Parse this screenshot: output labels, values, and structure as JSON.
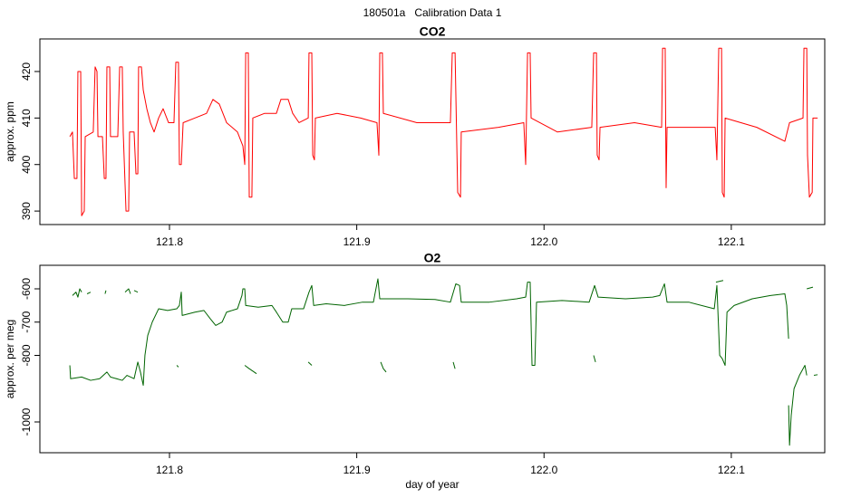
{
  "title": "180501a   Calibration Data 1",
  "chart_data": [
    {
      "type": "line",
      "title": "CO2",
      "y_label": "approx. ppm",
      "color": "#ff0000",
      "xlim": [
        121.7308,
        122.1499
      ],
      "ylim": [
        387.1,
        427.0
      ],
      "xticks": [
        121.8,
        121.9,
        {
          "value": 122,
          "label": "122.0"
        },
        122.1
      ],
      "yticks": [
        390,
        400,
        410,
        420
      ],
      "x": [
        121.7468,
        121.7482,
        121.7492,
        121.7506,
        121.7511,
        121.7526,
        121.7531,
        121.7545,
        121.755,
        121.7593,
        121.7603,
        121.7613,
        121.7618,
        121.7642,
        121.7652,
        121.7661,
        121.7666,
        121.7681,
        121.7685,
        121.7724,
        121.7734,
        121.7748,
        121.7753,
        121.7768,
        121.7782,
        121.7787,
        121.7811,
        121.7821,
        121.7831,
        121.7835,
        121.785,
        121.786,
        121.7879,
        121.7898,
        121.7918,
        121.7942,
        121.7966,
        121.7995,
        121.8024,
        121.8034,
        121.8048,
        121.8053,
        121.8063,
        121.8073,
        121.8136,
        121.8198,
        121.8232,
        121.8266,
        121.8305,
        121.8363,
        121.8392,
        121.8402,
        121.8407,
        121.8421,
        121.8426,
        121.844,
        121.8445,
        121.8508,
        121.8571,
        121.8595,
        121.8634,
        121.8658,
        121.8692,
        121.8741,
        121.8745,
        121.876,
        121.8765,
        121.8774,
        121.8779,
        121.8895,
        121.9021,
        121.9108,
        121.9118,
        121.9123,
        121.9137,
        121.9142,
        121.9321,
        121.95,
        121.951,
        121.9525,
        121.9539,
        121.9554,
        121.9558,
        121.9757,
        121.9892,
        121.9902,
        121.9912,
        121.9926,
        121.9931,
        122.0072,
        122.0255,
        122.0265,
        122.028,
        122.0284,
        122.0294,
        122.0299,
        122.0483,
        122.0628,
        122.0633,
        122.0647,
        122.0652,
        122.0657,
        122.0773,
        122.0914,
        122.0923,
        122.0933,
        122.0948,
        122.0952,
        122.0962,
        122.0967,
        122.1136,
        122.1286,
        122.1311,
        122.1383,
        122.1388,
        122.1403,
        122.1407,
        122.1417,
        122.1432,
        122.1436,
        122.1461
      ],
      "values": [
        406,
        407,
        397,
        397,
        420,
        420,
        389,
        390,
        406,
        407,
        421,
        420,
        406,
        406,
        397,
        397,
        421,
        421,
        406,
        406,
        421,
        421,
        407,
        390,
        390,
        407,
        407,
        398,
        398,
        421,
        421,
        416,
        412,
        409,
        407,
        410,
        412,
        409,
        409,
        422,
        422,
        400,
        400,
        409,
        410,
        411,
        414,
        413,
        409,
        407,
        404,
        400,
        424,
        424,
        393,
        393,
        410,
        411,
        411,
        414,
        414,
        411,
        409,
        410,
        424,
        424,
        402,
        401,
        410,
        411,
        410,
        409,
        402,
        424,
        424,
        411,
        409,
        409,
        424,
        424,
        394,
        393,
        407,
        408,
        409,
        400,
        424,
        424,
        410,
        407,
        408,
        424,
        424,
        402,
        401,
        408,
        409,
        408,
        425,
        425,
        395,
        408,
        408,
        408,
        401,
        425,
        425,
        394,
        393,
        410,
        408,
        405,
        409,
        410,
        425,
        425,
        402,
        393,
        394,
        410,
        410
      ]
    },
    {
      "type": "line",
      "title": "O2",
      "y_label": "approx. per meg",
      "x_label": "day of year",
      "color": "#006400",
      "xlim": [
        121.7308,
        122.1499
      ],
      "ylim": [
        -1092.5,
        -529.3
      ],
      "xticks": [
        121.8,
        121.9,
        {
          "value": 122,
          "label": "122.0"
        },
        122.1
      ],
      "yticks": [
        -600,
        -700,
        -800,
        -1000
      ],
      "x": [
        121.7468,
        121.7472,
        121.7531,
        121.7579,
        121.7627,
        121.7666,
        121.7685,
        121.7748,
        121.7773,
        121.7811,
        121.7831,
        121.7845,
        121.786,
        121.7869,
        121.7884,
        121.7908,
        121.7942,
        121.799,
        121.8039,
        121.8053,
        121.8063,
        121.8068,
        121.8136,
        121.8184,
        121.8218,
        121.8247,
        121.8281,
        121.8305,
        121.8363,
        121.8387,
        121.8392,
        121.8402,
        121.8407,
        121.8474,
        121.8547,
        121.8571,
        121.8605,
        121.8634,
        121.8653,
        121.8716,
        121.8745,
        121.876,
        121.877,
        121.8837,
        121.8934,
        121.9031,
        121.9089,
        121.9099,
        121.9113,
        121.9123,
        121.9273,
        121.9418,
        121.95,
        121.9529,
        121.9549,
        121.9558,
        121.9709,
        121.9854,
        121.9902,
        121.9912,
        121.9926,
        121.9936,
        121.9951,
        121.996,
        122.0096,
        122.0241,
        122.027,
        122.0289,
        122.0435,
        122.058,
        122.0618,
        122.0643,
        122.0657,
        122.0773,
        122.0909,
        122.0923,
        122.0938,
        122.0952,
        122.0967,
        122.0977,
        122.1015,
        122.1112,
        122.1209,
        122.1286,
        122.1296,
        122.1306,
        null,
        122.1306,
        122.1311,
        122.132,
        122.1335,
        122.1364,
        122.1393,
        122.1403,
        null,
        122.1441,
        122.1461,
        null,
        121.7482,
        121.7501,
        121.7511,
        121.7521,
        121.7531,
        null,
        121.756,
        121.7579,
        null,
        121.7656,
        121.7661,
        null,
        121.7763,
        121.7782,
        121.7792,
        null,
        121.7811,
        121.7831,
        null,
        121.8039,
        121.8048,
        null,
        121.8402,
        121.8426,
        121.8465,
        null,
        121.8741,
        121.876,
        null,
        121.9128,
        121.9142,
        121.9157,
        null,
        121.9515,
        121.9525,
        null,
        122.0265,
        122.0275,
        null,
        122.0918,
        122.0957,
        null,
        122.1403,
        122.1436
      ],
      "values": [
        -830,
        -870,
        -865,
        -875,
        -870,
        -850,
        -865,
        -875,
        -860,
        -870,
        -820,
        -850,
        -890,
        -800,
        -740,
        -700,
        -660,
        -665,
        -660,
        -650,
        -610,
        -680,
        -670,
        -665,
        -690,
        -710,
        -700,
        -670,
        -660,
        -620,
        -600,
        -600,
        -650,
        -655,
        -650,
        -670,
        -700,
        -700,
        -660,
        -660,
        -610,
        -590,
        -650,
        -645,
        -650,
        -640,
        -640,
        -610,
        -570,
        -630,
        -630,
        -632,
        -640,
        -585,
        -590,
        -640,
        -640,
        -630,
        -625,
        -580,
        -580,
        -830,
        -830,
        -640,
        -635,
        -640,
        -590,
        -625,
        -630,
        -625,
        -620,
        -585,
        -640,
        -640,
        -660,
        -590,
        -800,
        -810,
        -830,
        -670,
        -650,
        -630,
        -620,
        -615,
        -650,
        -750,
        null,
        -950,
        -1070,
        -980,
        -900,
        -860,
        -830,
        -860,
        null,
        -860,
        -858,
        null,
        -620,
        -610,
        -625,
        -600,
        -610,
        null,
        -615,
        -610,
        null,
        -615,
        -605,
        null,
        -610,
        -600,
        -615,
        null,
        -605,
        -610,
        null,
        -830,
        -835,
        null,
        -830,
        -840,
        -855,
        null,
        -820,
        -830,
        null,
        -820,
        -840,
        -850,
        null,
        -820,
        -840,
        null,
        -800,
        -820,
        null,
        -580,
        -575,
        null,
        -600,
        -595
      ]
    }
  ]
}
